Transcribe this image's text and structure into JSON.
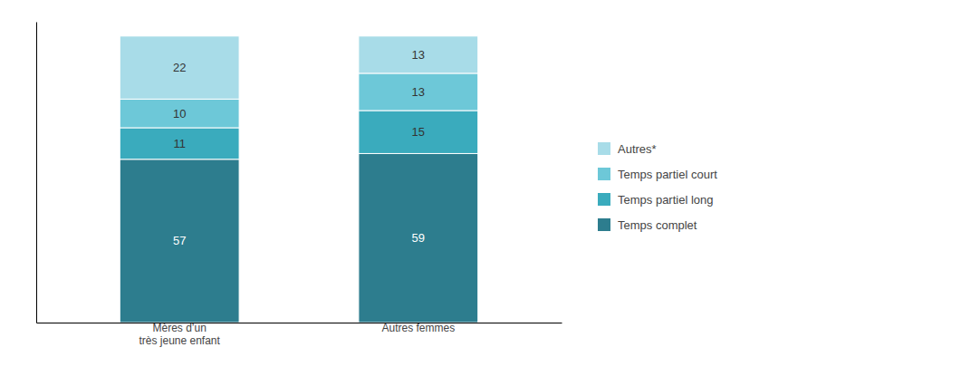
{
  "chart_data": {
    "type": "bar",
    "stacked": true,
    "categories": [
      "Mères d’un\ntrès jeune enfant",
      "Autres femmes"
    ],
    "series": [
      {
        "name": "Temps complet",
        "values": [
          57,
          59
        ],
        "color": "#2D7D8E"
      },
      {
        "name": "Temps partiel long",
        "values": [
          11,
          15
        ],
        "color": "#3AABBD"
      },
      {
        "name": "Temps partiel court",
        "values": [
          10,
          13
        ],
        "color": "#6DC8D8"
      },
      {
        "name": "Autres*",
        "values": [
          22,
          13
        ],
        "color": "#A8DCE8"
      }
    ],
    "ylim": [
      0,
      105
    ],
    "data_labels": true,
    "tick_labels": "x",
    "grid": false,
    "legend": "right"
  }
}
